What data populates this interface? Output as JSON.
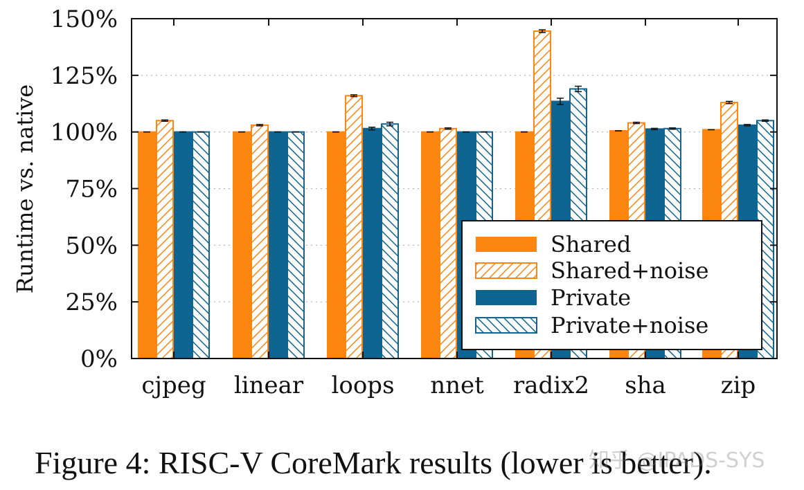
{
  "chart_data": {
    "type": "bar",
    "title": "",
    "xlabel": "",
    "ylabel": "Runtime vs. native",
    "ylim": [
      0,
      150
    ],
    "yticks": [
      0,
      25,
      50,
      75,
      100,
      125,
      150
    ],
    "ytick_labels": [
      "0%",
      "25%",
      "50%",
      "75%",
      "100%",
      "125%",
      "150%"
    ],
    "categories": [
      "cjpeg",
      "linear",
      "loops",
      "nnet",
      "radix2",
      "sha",
      "zip"
    ],
    "grid": "horizontal-dotted",
    "legend_position": "bottom-right",
    "series": [
      {
        "name": "Shared",
        "style": "solid",
        "values": [
          100,
          100,
          100,
          100,
          100,
          100.5,
          101
        ]
      },
      {
        "name": "Shared+noise",
        "style": "hatched-forward",
        "values": [
          105,
          103,
          116,
          101.5,
          144.5,
          104,
          113
        ]
      },
      {
        "name": "Private",
        "style": "solid",
        "values": [
          100,
          100,
          101.5,
          100,
          113.5,
          101.3,
          103
        ]
      },
      {
        "name": "Private+noise",
        "style": "hatched-backward",
        "values": [
          100,
          100,
          103.5,
          100,
          119,
          101.5,
          105
        ]
      }
    ],
    "error_bars": [
      [
        0,
        0,
        0,
        0,
        0,
        0,
        0
      ],
      [
        0.3,
        0.3,
        0.4,
        0.3,
        0.6,
        0.3,
        0.5
      ],
      [
        0,
        0,
        0.6,
        0,
        1.4,
        0.3,
        0.3
      ],
      [
        0,
        0,
        0.8,
        0,
        1.2,
        0.3,
        0.3
      ]
    ]
  },
  "colors": {
    "orange": "#fc8610",
    "blue": "#0f6592"
  },
  "caption": "Figure 4: RISC-V CoreMark results (lower is better).",
  "watermark": "知乎 @IPADS-SYS"
}
